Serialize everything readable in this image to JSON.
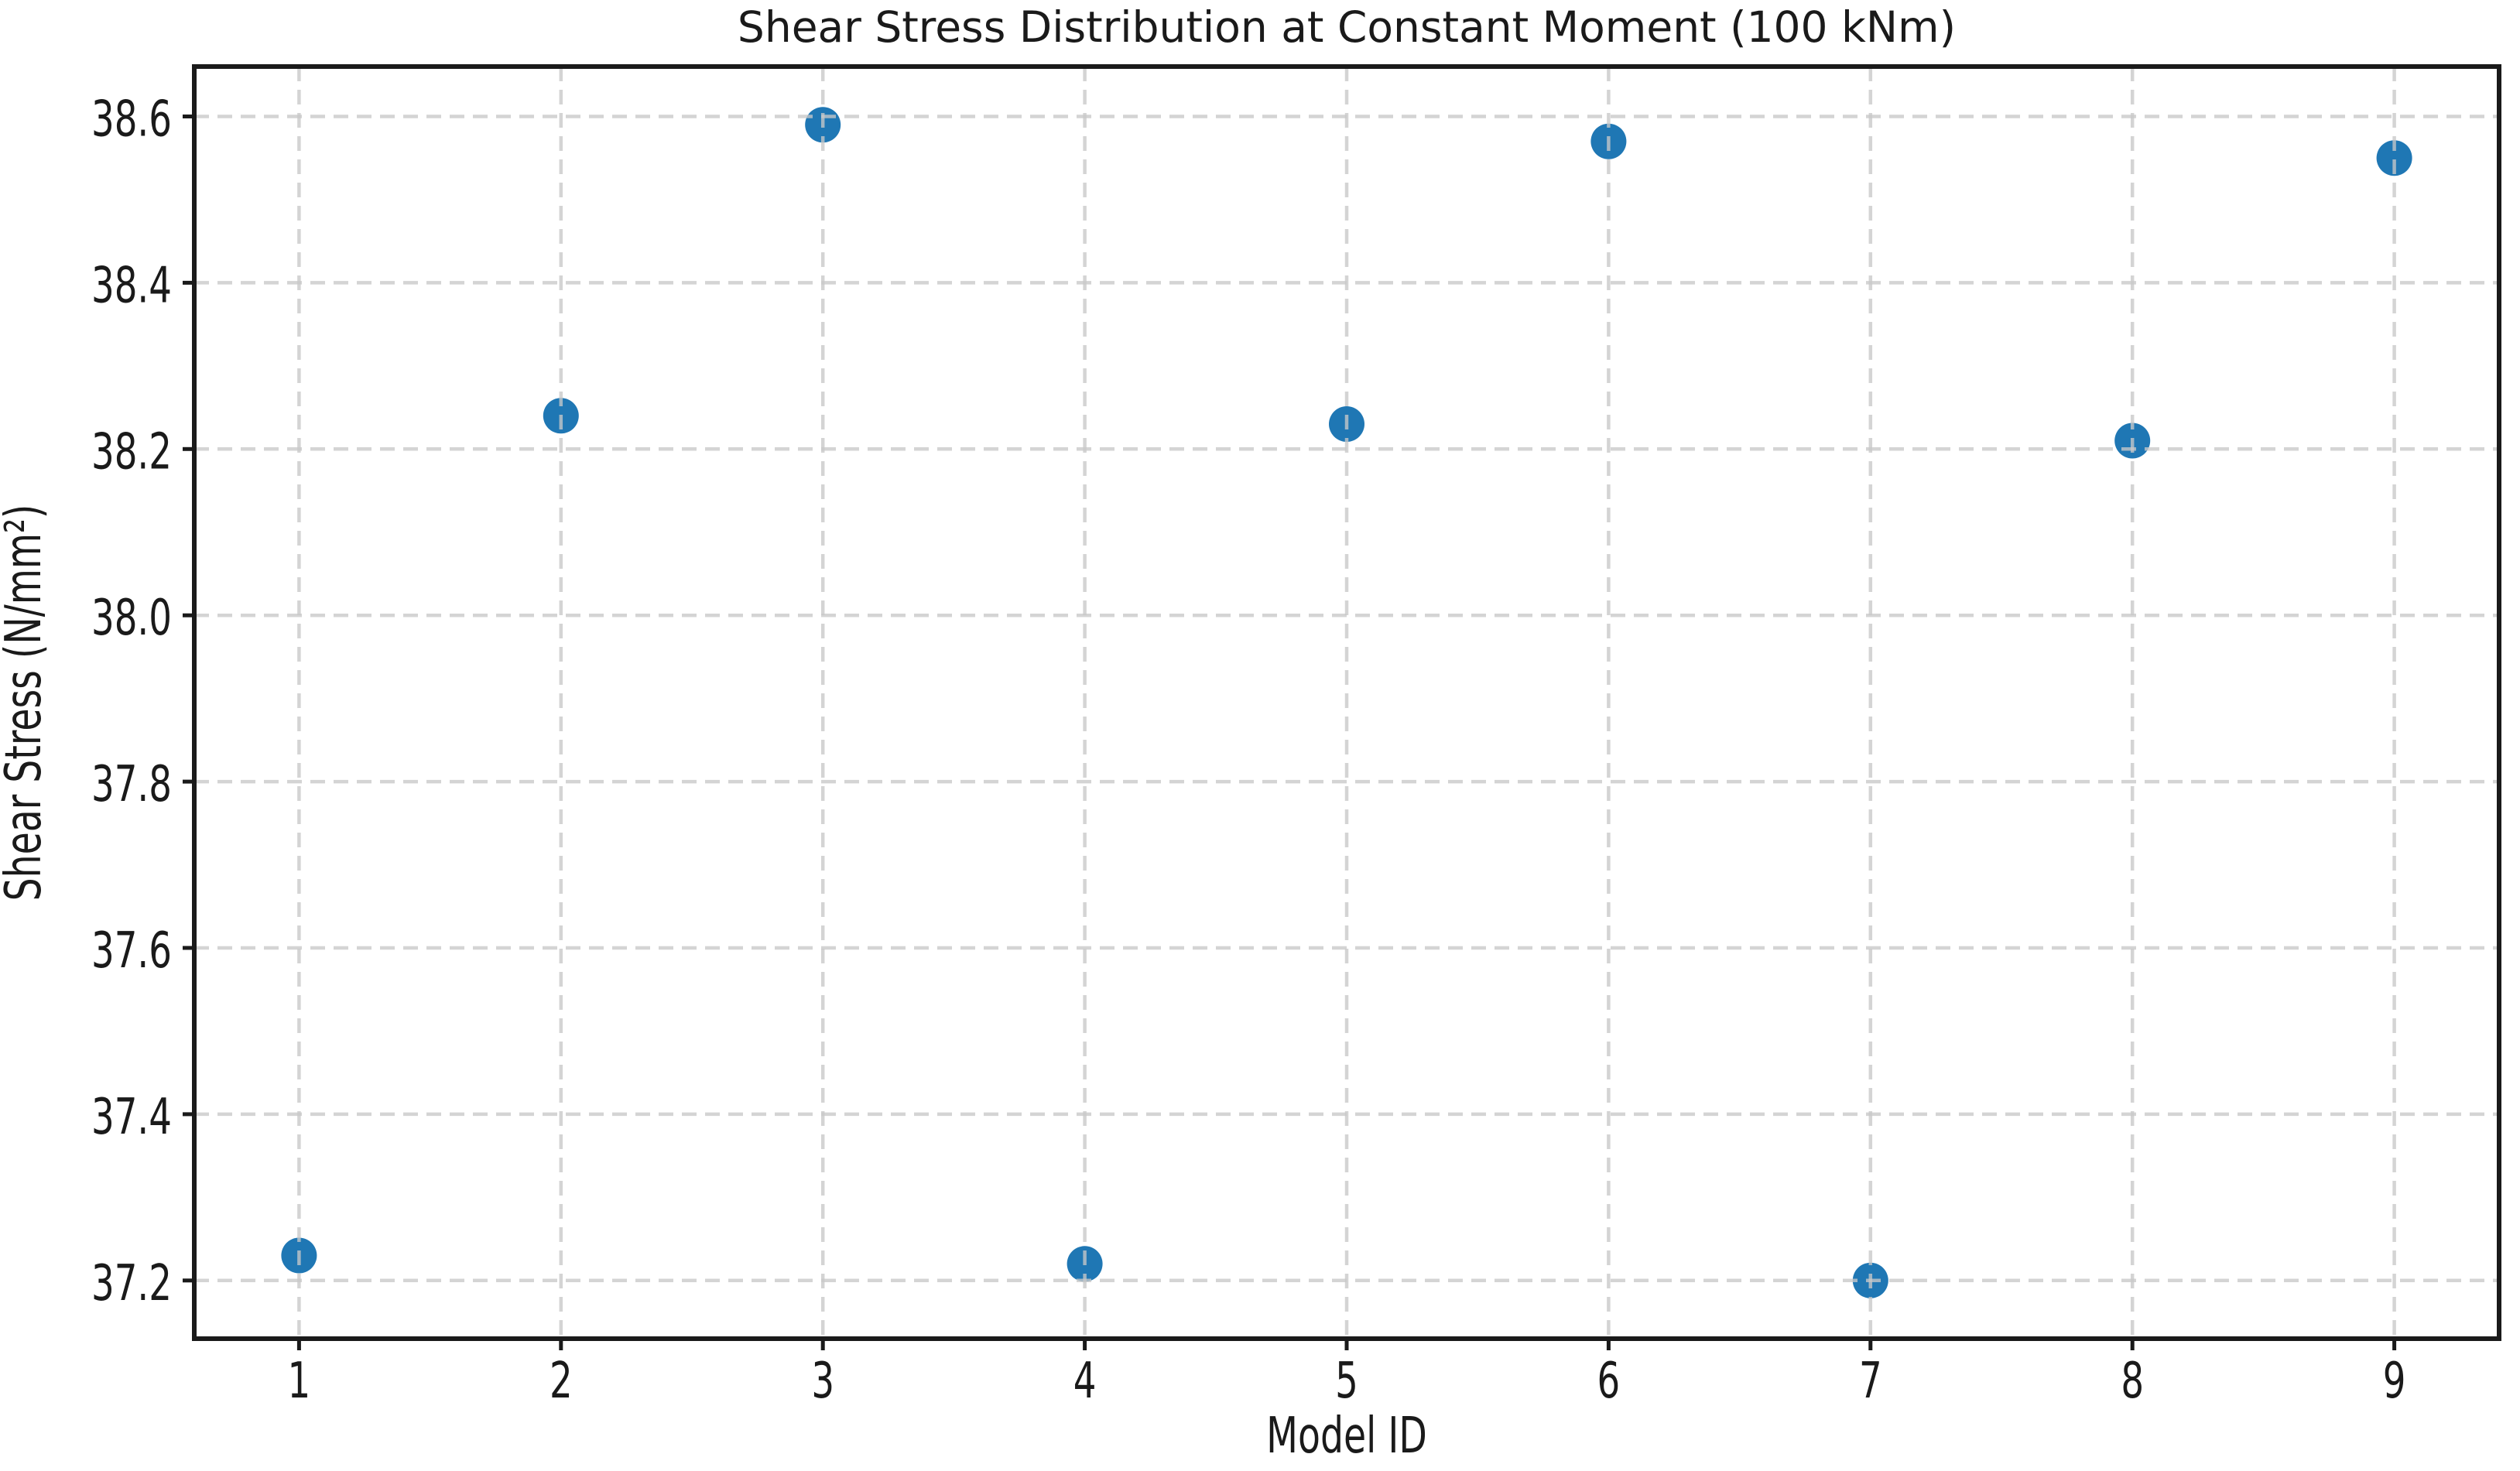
{
  "chart_data": {
    "type": "scatter",
    "title": "Shear Stress Distribution at Constant Moment (100 kNm)",
    "xlabel": "Model ID",
    "ylabel": "Shear Stress (N/mm²)",
    "x": [
      1,
      2,
      3,
      4,
      5,
      6,
      7,
      8,
      9
    ],
    "y": [
      37.23,
      38.24,
      38.59,
      37.22,
      38.23,
      38.57,
      37.2,
      38.21,
      38.55
    ],
    "x_ticks": [
      "1",
      "2",
      "3",
      "4",
      "5",
      "6",
      "7",
      "8",
      "9"
    ],
    "y_ticks": [
      "37.2",
      "37.4",
      "37.6",
      "37.8",
      "38.0",
      "38.2",
      "38.4",
      "38.6"
    ],
    "xlim": [
      0.6,
      9.4
    ],
    "ylim": [
      37.13,
      38.66
    ],
    "grid": true,
    "grid_style": "dashed",
    "legend": "none",
    "marker_color": "#1f77b4",
    "grid_color": "#c8c8c8",
    "grid_alpha": 0.78,
    "axis_color": "#1a1a1a",
    "background": "#ffffff"
  }
}
